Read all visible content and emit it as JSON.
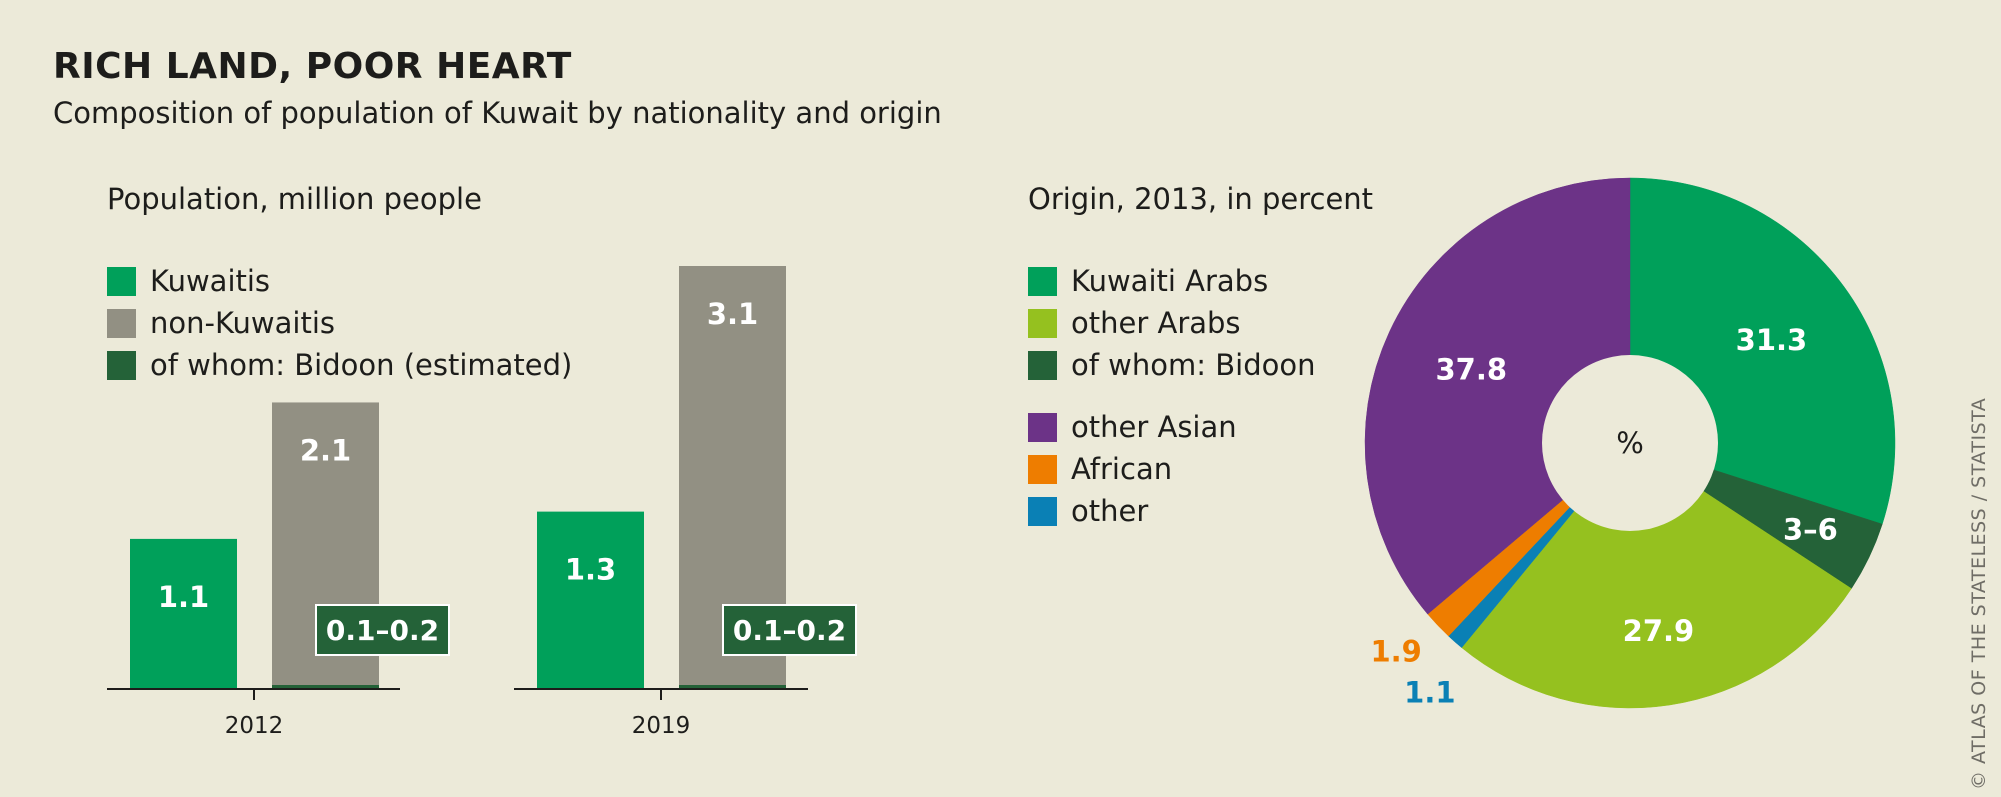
{
  "title": "RICH LAND, POOR HEART",
  "subtitle": "Composition of population of Kuwait by nationality and origin",
  "credit": "© ATLAS OF THE STATELESS / STATISTA",
  "chart_data": [
    {
      "type": "bar",
      "title": "Population, million people",
      "categories": [
        "2012",
        "2019"
      ],
      "series": [
        {
          "name": "Kuwaitis",
          "color": "#00a05a",
          "values": [
            1.1,
            1.3
          ],
          "labels": [
            "1.1",
            "1.3"
          ]
        },
        {
          "name": "non-Kuwaitis",
          "color": "#929083",
          "values": [
            2.1,
            3.1
          ],
          "labels": [
            "2.1",
            "3.1"
          ]
        },
        {
          "name": "of whom: Bidoon (estimated)",
          "color": "#246238",
          "values": [
            0.15,
            0.15
          ],
          "labels": [
            "0.1–0.2",
            "0.1–0.2"
          ]
        }
      ],
      "ylim": [
        0,
        3.1
      ]
    },
    {
      "type": "pie",
      "title": "Origin, 2013, in percent",
      "center_label": "%",
      "legend": [
        {
          "name": "Kuwaiti Arabs",
          "color": "#00a05a"
        },
        {
          "name": "other Arabs",
          "color": "#95c11f"
        },
        {
          "name": "of whom: Bidoon",
          "color": "#246238"
        },
        {
          "name": "other Asian",
          "color": "#6c3387"
        },
        {
          "name": "African",
          "color": "#ee7d00"
        },
        {
          "name": "other",
          "color": "#0a80b5"
        }
      ],
      "slices": [
        {
          "name": "Kuwaiti Arabs",
          "value": 31.3,
          "label": "31.3",
          "color": "#00a05a"
        },
        {
          "name": "of whom: Bidoon",
          "value": 4.5,
          "label": "3–6",
          "color": "#246238"
        },
        {
          "name": "other Arabs",
          "value": 27.9,
          "label": "27.9",
          "color": "#95c11f"
        },
        {
          "name": "other",
          "value": 1.1,
          "label": "1.1",
          "color": "#0a80b5"
        },
        {
          "name": "African",
          "value": 1.9,
          "label": "1.9",
          "color": "#ee7d00"
        },
        {
          "name": "other Asian",
          "value": 37.8,
          "label": "37.8",
          "color": "#6c3387"
        }
      ]
    }
  ]
}
